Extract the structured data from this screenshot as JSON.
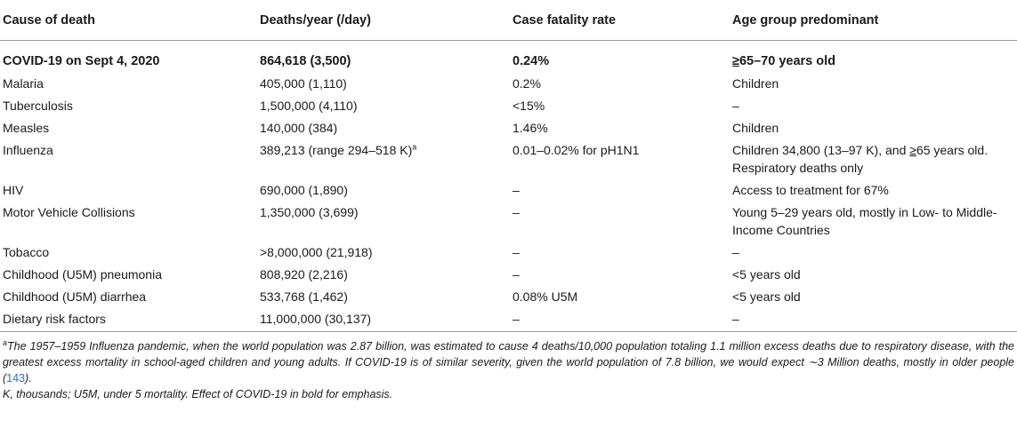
{
  "table": {
    "headers": [
      "Cause of death",
      "Deaths/year (/day)",
      "Case fatality rate",
      "Age group predominant"
    ],
    "rows": [
      {
        "cause": "COVID-19 on Sept 4, 2020",
        "deaths": "864,618 (3,500)",
        "cfr": "0.24%",
        "age_ge": "≥",
        "age": "65–70 years old"
      },
      {
        "cause": "Malaria",
        "deaths": "405,000 (1,110)",
        "cfr": "0.2%",
        "age": "Children"
      },
      {
        "cause": "Tuberculosis",
        "deaths": "1,500,000 (4,110)",
        "cfr": "<15%",
        "age": "–"
      },
      {
        "cause": "Measles",
        "deaths": "140,000 (384)",
        "cfr": "1.46%",
        "age": "Children"
      },
      {
        "cause": "Influenza",
        "deaths": "389,213 (range 294–518 K)",
        "deaths_sup": "a",
        "cfr": "0.01–0.02% for pH1N1",
        "age_pre": "Children 34,800 (13–97 K), and ",
        "age_ge": "≥",
        "age": "65 years old. Respiratory deaths only"
      },
      {
        "cause": "HIV",
        "deaths": "690,000 (1,890)",
        "cfr": "–",
        "age": "Access to treatment for 67%"
      },
      {
        "cause": "Motor Vehicle Collisions",
        "deaths": "1,350,000 (3,699)",
        "cfr": "–",
        "age": "Young 5–29 years old, mostly in Low- to Middle-Income Countries"
      },
      {
        "cause": "Tobacco",
        "deaths": ">8,000,000 (21,918)",
        "cfr": "–",
        "age": "–"
      },
      {
        "cause": "Childhood (U5M) pneumonia",
        "deaths": "808,920 (2,216)",
        "cfr": "–",
        "age": "<5 years old"
      },
      {
        "cause": "Childhood (U5M) diarrhea",
        "deaths": "533,768 (1,462)",
        "cfr": "0.08% U5M",
        "age": "<5 years old"
      },
      {
        "cause": "Dietary risk factors",
        "deaths": "11,000,000 (30,137)",
        "cfr": "–",
        "age": "–"
      }
    ]
  },
  "footnotes": {
    "a_mark": "a",
    "a_text": "The 1957–1959 Influenza pandemic, when the world population was 2.87 billion, was estimated to cause 4 deaths/10,000 population totaling 1.1 million excess deaths due to respiratory disease, with the greatest excess mortality in school-aged children and young adults. If COVID-19 is of similar severity, given the world population of 7.8 billion, we would expect ∼3 Million deaths, mostly in older people (",
    "a_ref": "143",
    "a_end": ").",
    "abbrev": "K, thousands; U5M, under 5 mortality. Effect of COVID-19 in bold for emphasis."
  }
}
